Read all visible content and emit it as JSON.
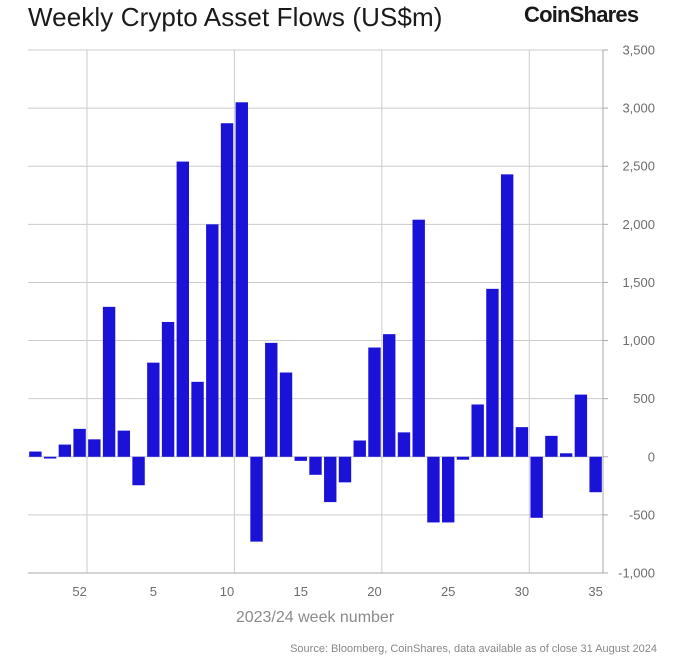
{
  "header": {
    "title": "Weekly Crypto Asset Flows (US$m)",
    "brand": "CoinShares"
  },
  "colors": {
    "bar": "#1a12d6",
    "grid": "#cccccc",
    "axis": "#aaaaaa",
    "text": "#6d6d6d"
  },
  "footer": {
    "source": "Source: Bloomberg, CoinShares, data available as of close 31 August 2024"
  },
  "chart_data": {
    "type": "bar",
    "title": "Weekly Crypto Asset Flows (US$m)",
    "xlabel": "2023/24 week number",
    "ylabel": "",
    "ylim": [
      -1000,
      3500
    ],
    "y_ticks": [
      3500,
      3000,
      2500,
      2000,
      1500,
      1000,
      500,
      0,
      -500,
      -1000
    ],
    "y_tick_labels": [
      "3,500",
      "3,000",
      "2,500",
      "2,000",
      "1,500",
      "1,000",
      "500",
      "0",
      "-500",
      "-1,000"
    ],
    "y_axis_side": "right",
    "x_tick_labels": [
      "52",
      "5",
      "10",
      "15",
      "20",
      "25",
      "30",
      "35"
    ],
    "x_tick_weeks": [
      52,
      5,
      10,
      15,
      20,
      25,
      30,
      35
    ],
    "vertical_gridlines_before_weeks": [
      1,
      11,
      21,
      31
    ],
    "horizontal_grid": true,
    "weeks": [
      49,
      50,
      51,
      52,
      1,
      2,
      3,
      4,
      5,
      6,
      7,
      8,
      9,
      10,
      11,
      12,
      13,
      14,
      15,
      16,
      17,
      18,
      19,
      20,
      21,
      22,
      23,
      24,
      25,
      26,
      27,
      28,
      29,
      30,
      31,
      32,
      33,
      34,
      35
    ],
    "values": [
      45,
      -15,
      105,
      240,
      150,
      1290,
      225,
      -245,
      810,
      1160,
      2540,
      645,
      2000,
      2870,
      3050,
      -730,
      980,
      725,
      -35,
      -155,
      -390,
      -220,
      140,
      940,
      1055,
      210,
      2040,
      -565,
      -565,
      -25,
      450,
      1445,
      2430,
      255,
      -525,
      180,
      30,
      535,
      -305
    ]
  }
}
